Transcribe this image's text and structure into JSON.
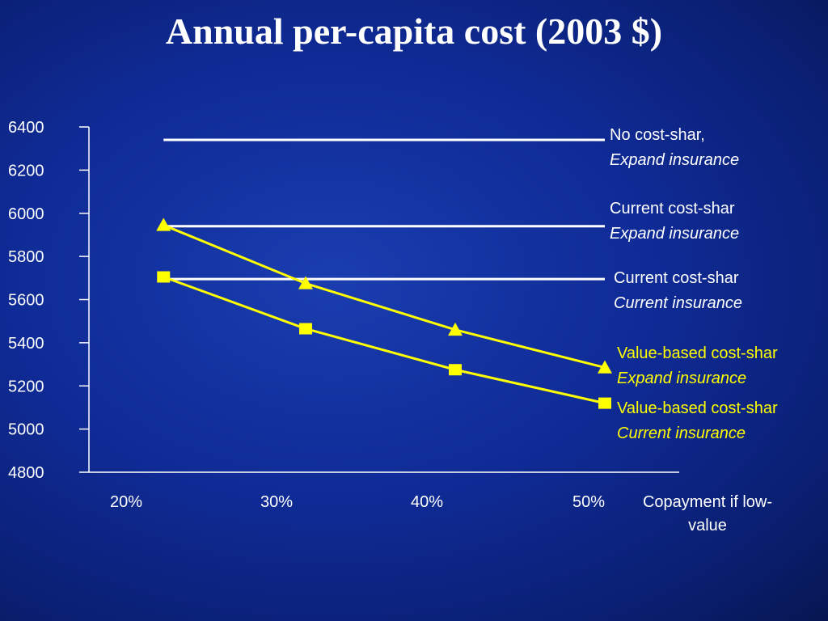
{
  "title": "Annual per-capita cost (2003 $)",
  "colors": {
    "axis": "#ffffff",
    "reference": "#ffffff",
    "series": "#ffff00",
    "label_white": "#ffffff",
    "label_yellow": "#ffff00"
  },
  "chart_data": {
    "type": "line",
    "title": "Annual per-capita cost (2003 $)",
    "xlabel": "Copayment if low-value",
    "ylabel": "",
    "ylim": [
      4800,
      6400
    ],
    "y_ticks": [
      6400,
      6200,
      6000,
      5800,
      5600,
      5400,
      5200,
      5000,
      4800
    ],
    "x_categories": [
      "20%",
      "30%",
      "40%",
      "50%"
    ],
    "reference_lines": [
      {
        "name": "no-cost-shar-expand",
        "value": 6340,
        "x_start": 0.25,
        "line1": "No cost-shar,",
        "line2": "Expand insurance"
      },
      {
        "name": "current-cost-shar-expand",
        "value": 5940,
        "x_start": 0.25,
        "line1": "Current cost-shar",
        "line2": "Expand insurance"
      },
      {
        "name": "current-cost-shar-current",
        "value": 5695,
        "x_start": 0.25,
        "line1": "Current cost-shar",
        "line2": "Current insurance"
      }
    ],
    "series": [
      {
        "name": "value-based-expand",
        "marker": "triangle",
        "x": [
          0.25,
          1.2,
          2.2,
          3.2
        ],
        "values": [
          5945,
          5675,
          5460,
          5285
        ],
        "line1": "Value-based cost-shar",
        "line2": "Expand insurance"
      },
      {
        "name": "value-based-current",
        "marker": "square",
        "x": [
          0.25,
          1.2,
          2.2,
          3.2
        ],
        "values": [
          5705,
          5465,
          5275,
          5120
        ],
        "line1": "Value-based cost-shar",
        "line2": "Current insurance"
      }
    ]
  }
}
